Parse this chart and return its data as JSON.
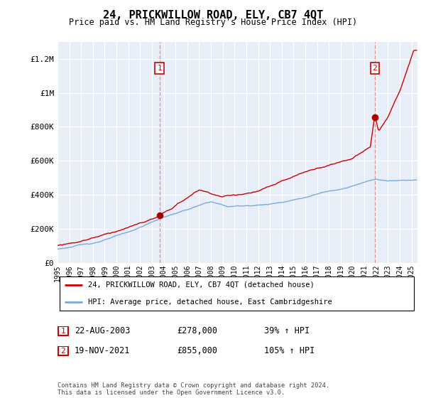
{
  "title": "24, PRICKWILLOW ROAD, ELY, CB7 4QT",
  "subtitle": "Price paid vs. HM Land Registry's House Price Index (HPI)",
  "ylabel_ticks": [
    "£0",
    "£200K",
    "£400K",
    "£600K",
    "£800K",
    "£1M",
    "£1.2M"
  ],
  "ytick_values": [
    0,
    200000,
    400000,
    600000,
    800000,
    1000000,
    1200000
  ],
  "ylim": [
    0,
    1300000
  ],
  "xlim_start": 1995.0,
  "xlim_end": 2025.5,
  "hpi_color": "#7aaadd",
  "price_color": "#cc0000",
  "vline_color": "#ee8888",
  "marker1_year": 2003.64,
  "marker1_value": 278000,
  "marker2_year": 2021.89,
  "marker2_value": 855000,
  "sale1_label": "1",
  "sale2_label": "2",
  "sale1_date": "22-AUG-2003",
  "sale1_price": "£278,000",
  "sale1_hpi": "39% ↑ HPI",
  "sale2_date": "19-NOV-2021",
  "sale2_price": "£855,000",
  "sale2_hpi": "105% ↑ HPI",
  "legend_line1": "24, PRICKWILLOW ROAD, ELY, CB7 4QT (detached house)",
  "legend_line2": "HPI: Average price, detached house, East Cambridgeshire",
  "footer": "Contains HM Land Registry data © Crown copyright and database right 2024.\nThis data is licensed under the Open Government Licence v3.0.",
  "background_color": "#ffffff",
  "plot_bg_color": "#e8eef8",
  "grid_color": "#ffffff"
}
